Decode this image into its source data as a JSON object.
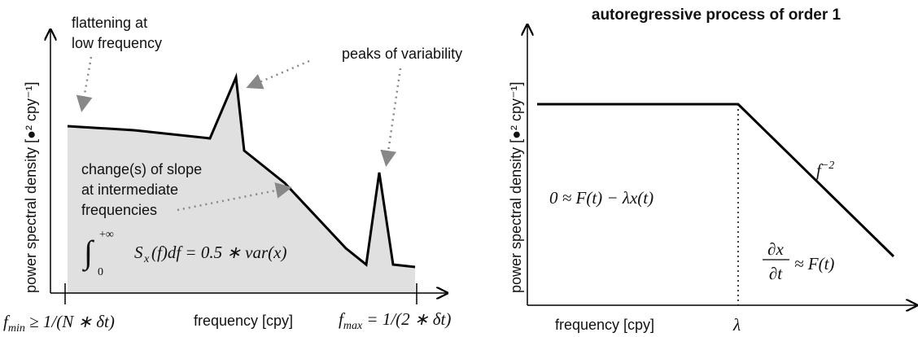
{
  "left_panel": {
    "annotations": {
      "flattening": [
        "flattening at",
        "low frequency"
      ],
      "peaks": "peaks of variability",
      "slope": [
        "change(s) of slope",
        "at intermediate",
        "frequencies"
      ]
    },
    "integral": {
      "sign": "∫",
      "upper": "+∞",
      "lower": "0",
      "body": "S",
      "sub": "x",
      "rest": "(f)df = 0.5 ∗ var(x)"
    },
    "ylabel": "power spectral density [●² cpy⁻¹]",
    "xlabel": "frequency [cpy]",
    "fmin": {
      "f": "f",
      "sub": "min",
      "rest": " ≥ 1/(N ∗ δt)"
    },
    "fmax": {
      "f": "f",
      "sub": "max",
      "rest": " = 1/(2 ∗ δt)"
    }
  },
  "right_panel": {
    "title": "autoregressive process of order 1",
    "ylabel": "power spectral density [●² cpy⁻¹]",
    "xlabel": "frequency [cpy]",
    "lambda": "λ",
    "slope": {
      "f": "f",
      "exp": "−2"
    },
    "equation": "0 ≈ F(t) − λx(t)",
    "derivative": {
      "num": "∂x",
      "den": "∂t",
      "rest": "≈ F(t)"
    }
  }
}
